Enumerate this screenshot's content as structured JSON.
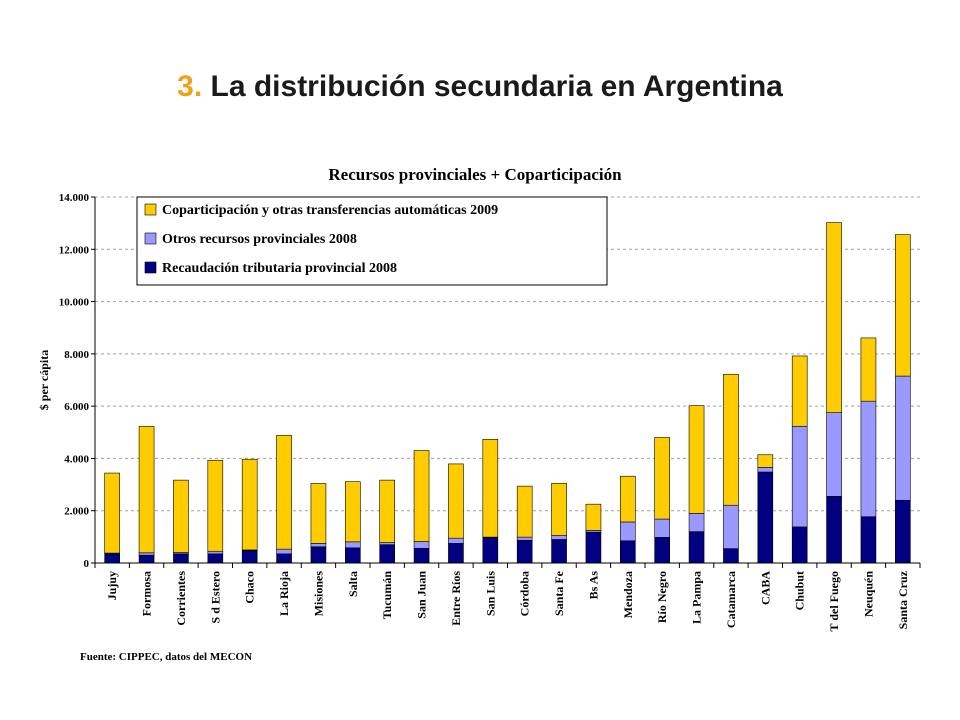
{
  "slide": {
    "title_number": "3.",
    "title_text": " La distribución secundaria en Argentina",
    "source": "Fuente: CIPPEC, datos del MECON"
  },
  "chart_data": {
    "type": "bar",
    "stacked": true,
    "title": "Recursos provinciales + Coparticipación",
    "ylabel": "$ per cápita",
    "xlabel": "",
    "ylim": [
      0,
      14000
    ],
    "yticks": [
      0,
      2000,
      4000,
      6000,
      8000,
      10000,
      12000,
      14000
    ],
    "ytick_labels": [
      "0",
      "2.000",
      "4.000",
      "6.000",
      "8.000",
      "10.000",
      "12.000",
      "14.000"
    ],
    "grid": true,
    "legend_position": "top-left",
    "categories": [
      "Jujuy",
      "Formosa",
      "Corrientes",
      "S d Estero",
      "Chaco",
      "La Rioja",
      "Misiones",
      "Salta",
      "Tucumán",
      "San Juan",
      "Entre Ríos",
      "San Luis",
      "Córdoba",
      "Santa Fe",
      "Bs As",
      "Mendoza",
      "Río Negro",
      "La Pampa",
      "Catamarca",
      "CABA",
      "Chubut",
      "T del Fuego",
      "Neuquén",
      "Santa Cruz"
    ],
    "series": [
      {
        "name": "Recaudación tributaria provincial 2008",
        "color": "#000080",
        "values": [
          350,
          300,
          350,
          350,
          480,
          350,
          620,
          580,
          700,
          560,
          750,
          970,
          870,
          900,
          1180,
          850,
          980,
          1200,
          550,
          3480,
          1380,
          2550,
          1770,
          2400
        ]
      },
      {
        "name": "Otros recursos provinciales 2008",
        "color": "#9999ff",
        "values": [
          30,
          90,
          50,
          100,
          20,
          180,
          130,
          230,
          80,
          260,
          200,
          20,
          120,
          150,
          70,
          720,
          700,
          700,
          1660,
          180,
          3850,
          3200,
          4420,
          4750
        ]
      },
      {
        "name": "Coparticipación y otras transferencias automáticas 2009",
        "color": "#ffcc00",
        "values": [
          3060,
          4840,
          2770,
          3480,
          3470,
          4350,
          2290,
          2300,
          2390,
          3480,
          2840,
          3740,
          1950,
          2000,
          1000,
          1750,
          3120,
          4120,
          5010,
          480,
          2690,
          7270,
          2420,
          5410
        ]
      }
    ],
    "legend_order": [
      2,
      1,
      0
    ]
  }
}
